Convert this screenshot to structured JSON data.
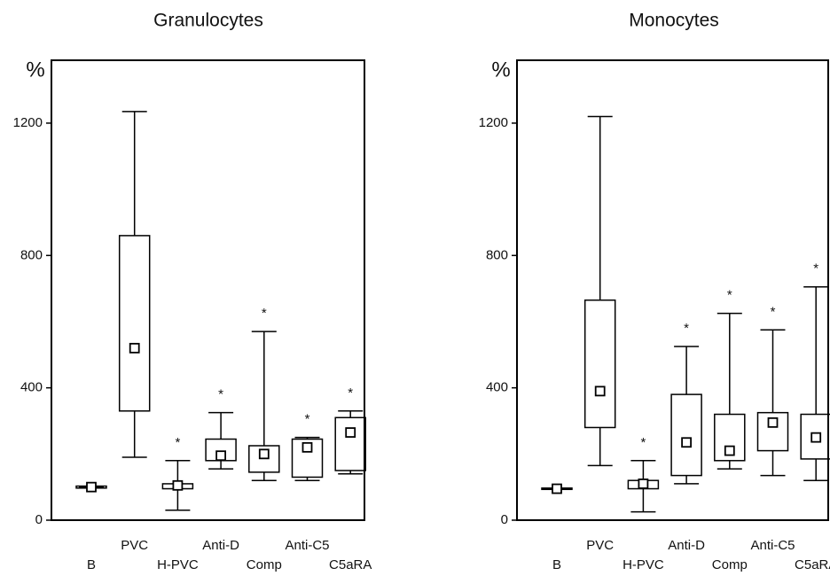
{
  "chart_data": [
    {
      "type": "box",
      "title": "Granulocytes",
      "y_label": "%",
      "categories": [
        "B",
        "PVC",
        "H-PVC",
        "Anti-D",
        "Comp",
        "Anti-C5",
        "C5aRA"
      ],
      "whisker_low": [
        100,
        190,
        30,
        155,
        120,
        120,
        140
      ],
      "q1": [
        97,
        330,
        95,
        180,
        145,
        130,
        150
      ],
      "q3": [
        103,
        860,
        110,
        245,
        225,
        245,
        310
      ],
      "whisker_high": [
        100,
        1235,
        180,
        325,
        570,
        250,
        330
      ],
      "mean": [
        100,
        520,
        105,
        195,
        200,
        220,
        265
      ],
      "annotations": [
        null,
        null,
        "*",
        "*",
        "*",
        "*",
        "*"
      ],
      "ylim": [
        0,
        1390
      ],
      "yticks": [
        0,
        400,
        800,
        1200
      ],
      "color": "#000000"
    },
    {
      "type": "box",
      "title": "Monocytes",
      "y_label": "%",
      "categories": [
        "B",
        "PVC",
        "H-PVC",
        "Anti-D",
        "Comp",
        "Anti-C5",
        "C5aRA"
      ],
      "whisker_low": [
        95,
        165,
        25,
        110,
        155,
        135,
        120
      ],
      "q1": [
        93,
        280,
        95,
        135,
        180,
        210,
        185
      ],
      "q3": [
        97,
        665,
        120,
        380,
        320,
        325,
        320
      ],
      "whisker_high": [
        95,
        1220,
        180,
        525,
        625,
        575,
        705
      ],
      "mean": [
        95,
        390,
        110,
        235,
        210,
        295,
        250
      ],
      "annotations": [
        null,
        null,
        "*",
        "*",
        "*",
        "*",
        "*"
      ],
      "ylim": [
        0,
        1390
      ],
      "yticks": [
        0,
        400,
        800,
        1200
      ],
      "color": "#000000"
    }
  ]
}
